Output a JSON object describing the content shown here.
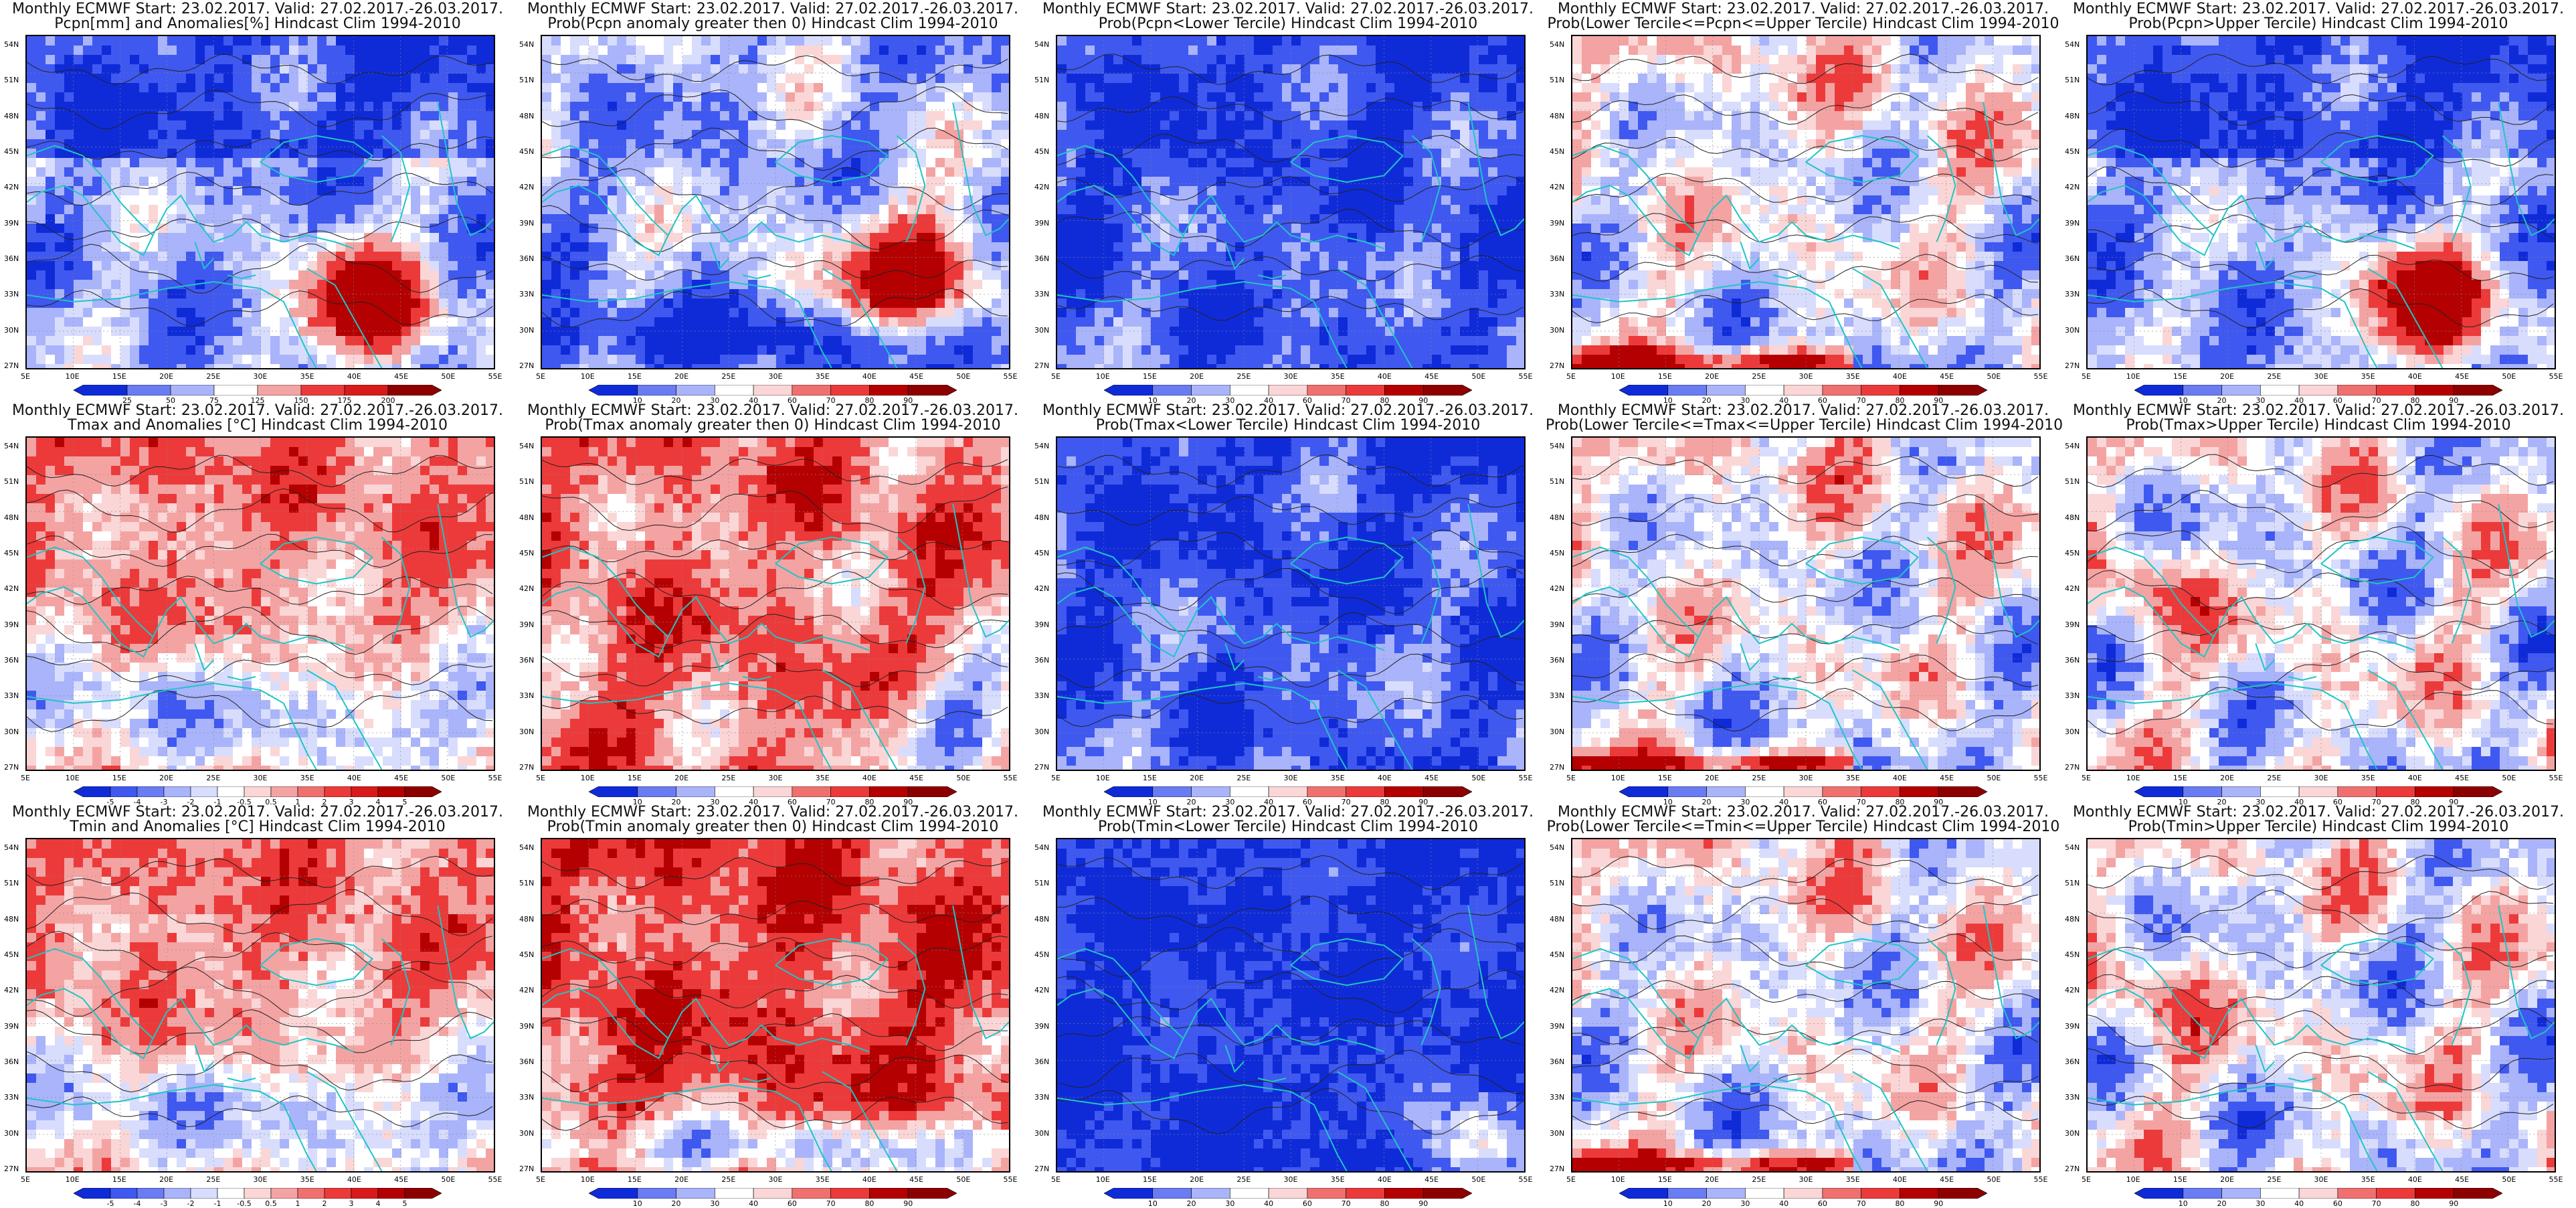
{
  "title_line1": "Monthly ECMWF Start: 23.02.2017. Valid: 27.02.2017.-26.03.2017.",
  "lat_ticks": [
    "54N",
    "51N",
    "48N",
    "45N",
    "42N",
    "39N",
    "36N",
    "33N",
    "30N",
    "27N"
  ],
  "lon_ticks": [
    "5E",
    "10E",
    "15E",
    "20E",
    "25E",
    "30E",
    "35E",
    "40E",
    "45E",
    "50E",
    "55E"
  ],
  "scales": {
    "precip": [
      "25",
      "50",
      "75",
      "125",
      "150",
      "175",
      "200"
    ],
    "prob": [
      "10",
      "20",
      "30",
      "40",
      "60",
      "70",
      "80",
      "90"
    ],
    "anom": [
      "-5",
      "-4",
      "-3",
      "-2",
      "-1",
      "-0.5",
      "0.5",
      "1",
      "2",
      "3",
      "4",
      "5"
    ],
    "anom_tmax": [
      "-5",
      "-4",
      "-3",
      "-2",
      "-1",
      "-0.5",
      "0.5",
      "1",
      "2",
      "3",
      "4",
      "5"
    ]
  },
  "colors": {
    "dark_blue": "#0f2bd8",
    "blue": "#3f58f0",
    "light_blue": "#a9b4fa",
    "pale_blue": "#d8ddfd",
    "white": "#ffffff",
    "pale_red": "#fbd6d6",
    "light_red": "#f4a3a3",
    "red": "#ec3a3a",
    "dark_red": "#b40000",
    "coast": "#20c5c5",
    "contour": "#222222"
  },
  "panels": [
    {
      "title2": "Pcpn[mm] and Anomalies[%] Hindcast Clim 1994-2010",
      "scale": "precip",
      "scheme": "precip"
    },
    {
      "title2": "Prob(Pcpn anomaly greater then 0) Hindcast Clim 1994-2010",
      "scale": "prob",
      "scheme": "pbelow"
    },
    {
      "title2": "Prob(Pcpn<Lower Tercile) Hindcast Clim 1994-2010",
      "scale": "prob",
      "scheme": "blue_heavy"
    },
    {
      "title2": "Prob(Lower Tercile<=Pcpn<=Upper Tercile) Hindcast Clim 1994-2010",
      "scale": "prob",
      "scheme": "mixed"
    },
    {
      "title2": "Prob(Pcpn>Upper Tercile) Hindcast Clim 1994-2010",
      "scale": "prob",
      "scheme": "precip"
    },
    {
      "title2": "Tmax and Anomalies [°C] Hindcast Clim 1994-2010",
      "scale": "anom_tmax",
      "scheme": "warm_light"
    },
    {
      "title2": "Prob(Tmax anomaly greater then 0) Hindcast Clim 1994-2010",
      "scale": "prob",
      "scheme": "warm"
    },
    {
      "title2": "Prob(Tmax<Lower Tercile) Hindcast Clim 1994-2010",
      "scale": "prob",
      "scheme": "blue_heavy"
    },
    {
      "title2": "Prob(Lower Tercile<=Tmax<=Upper Tercile) Hindcast Clim 1994-2010",
      "scale": "prob",
      "scheme": "mixed"
    },
    {
      "title2": "Prob(Tmax>Upper Tercile) Hindcast Clim 1994-2010",
      "scale": "prob",
      "scheme": "mixed_red"
    },
    {
      "title2": "Tmin and Anomalies [°C] Hindcast Clim 1994-2010",
      "scale": "anom",
      "scheme": "warm_light"
    },
    {
      "title2": "Prob(Tmin anomaly greater then 0) Hindcast Clim 1994-2010",
      "scale": "prob",
      "scheme": "warm_strong"
    },
    {
      "title2": "Prob(Tmin<Lower Tercile) Hindcast Clim 1994-2010",
      "scale": "prob",
      "scheme": "blue_all"
    },
    {
      "title2": "Prob(Lower Tercile<=Tmin<=Upper Tercile) Hindcast Clim 1994-2010",
      "scale": "prob",
      "scheme": "mixed"
    },
    {
      "title2": "Prob(Tmin>Upper Tercile) Hindcast Clim 1994-2010",
      "scale": "prob",
      "scheme": "mixed_red"
    }
  ]
}
